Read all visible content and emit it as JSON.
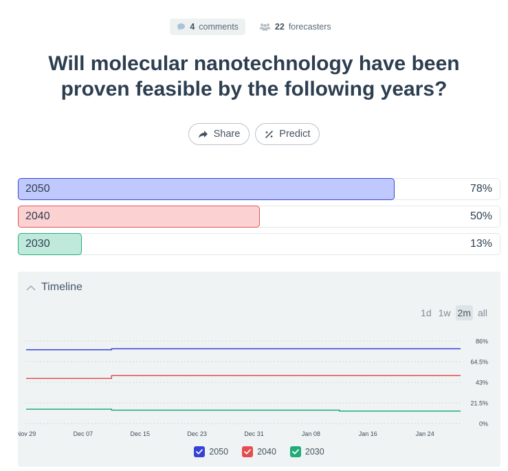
{
  "meta": {
    "comments_count": "4",
    "comments_label": "comments",
    "forecasters_count": "22",
    "forecasters_label": "forecasters"
  },
  "title": "Will molecular nanotechnology have been proven feasible by the following years?",
  "actions": {
    "share_label": "Share",
    "predict_label": "Predict"
  },
  "options": [
    {
      "label": "2050",
      "value_text": "78%",
      "fraction": 0.78,
      "fill": "#c0c9fd",
      "border": "#3845d6"
    },
    {
      "label": "2040",
      "value_text": "50%",
      "fraction": 0.5,
      "fill": "#fcd1d1",
      "border": "#e25454"
    },
    {
      "label": "2030",
      "value_text": "13%",
      "fraction": 0.13,
      "fill": "#bfeadb",
      "border": "#26ac7d"
    }
  ],
  "timeline": {
    "heading": "Timeline",
    "ranges": [
      "1d",
      "1w",
      "2m",
      "all"
    ],
    "active_range": "2m"
  },
  "chart_data": {
    "type": "line",
    "x_tick_labels": [
      "Nov 29",
      "Dec 07",
      "Dec 15",
      "Dec 23",
      "Dec 31",
      "Jan 08",
      "Jan 16",
      "Jan 24"
    ],
    "x_range": [
      "Nov 29",
      "Jan 29"
    ],
    "y_tick_labels": [
      "86%",
      "64.5%",
      "43%",
      "21.5%",
      "0%"
    ],
    "ylim": [
      0,
      86
    ],
    "y_unit": "%",
    "grid": true,
    "legend_position": "bottom",
    "series": [
      {
        "name": "2050",
        "color": "#3542d6",
        "points": [
          [
            "Nov 29",
            77
          ],
          [
            "Dec 11",
            77
          ],
          [
            "Dec 11",
            78
          ],
          [
            "Jan 29",
            78
          ]
        ]
      },
      {
        "name": "2040",
        "color": "#e34d4d",
        "points": [
          [
            "Nov 29",
            47
          ],
          [
            "Dec 11",
            47
          ],
          [
            "Dec 11",
            50
          ],
          [
            "Jan 29",
            50
          ]
        ]
      },
      {
        "name": "2030",
        "color": "#1fac77",
        "points": [
          [
            "Nov 29",
            15
          ],
          [
            "Dec 11",
            15
          ],
          [
            "Dec 11",
            14
          ],
          [
            "Jan 12",
            14
          ],
          [
            "Jan 12",
            13
          ],
          [
            "Jan 29",
            13
          ]
        ]
      }
    ]
  }
}
